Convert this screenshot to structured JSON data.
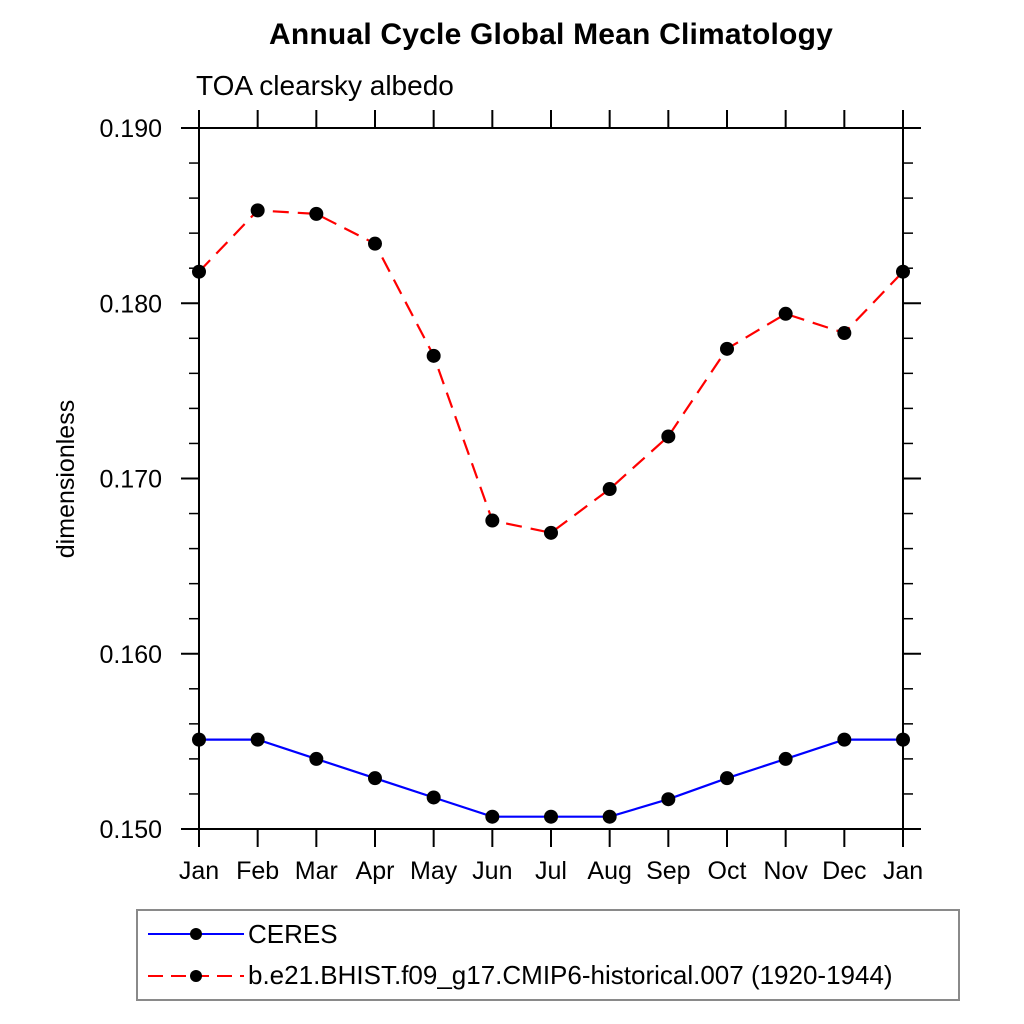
{
  "page": {
    "background": "#ffffff"
  },
  "chart_data": {
    "type": "line",
    "title": "Annual Cycle Global Mean Climatology",
    "subtitle": "TOA clearsky albedo",
    "ylabel": "dimensionless",
    "xlabel": "",
    "categories": [
      "Jan",
      "Feb",
      "Mar",
      "Apr",
      "May",
      "Jun",
      "Jul",
      "Aug",
      "Sep",
      "Oct",
      "Nov",
      "Dec",
      "Jan"
    ],
    "ylim": [
      0.15,
      0.19
    ],
    "y_major_ticks": [
      0.15,
      0.16,
      0.17,
      0.18,
      0.19
    ],
    "y_tick_labels": [
      "0.150",
      "0.160",
      "0.170",
      "0.180",
      "0.190"
    ],
    "y_minor_step": 0.002,
    "grid": false,
    "frame_color": "#000000",
    "marker_color": "#000000",
    "legend_position": "bottom-left-box",
    "series": [
      {
        "name": "CERES",
        "color": "#0000ff",
        "style": "solid",
        "marker": "circle",
        "values": [
          0.1551,
          0.1551,
          0.154,
          0.1529,
          0.1518,
          0.1507,
          0.1507,
          0.1507,
          0.1517,
          0.1529,
          0.154,
          0.1551,
          0.1551
        ]
      },
      {
        "name": "b.e21.BHIST.f09_g17.CMIP6-historical.007 (1920-1944)",
        "color": "#ff0000",
        "style": "dashed",
        "marker": "circle",
        "values": [
          0.1818,
          0.1853,
          0.1851,
          0.1834,
          0.177,
          0.1676,
          0.1669,
          0.1694,
          0.1724,
          0.1774,
          0.1794,
          0.1783,
          0.1818
        ]
      }
    ]
  }
}
